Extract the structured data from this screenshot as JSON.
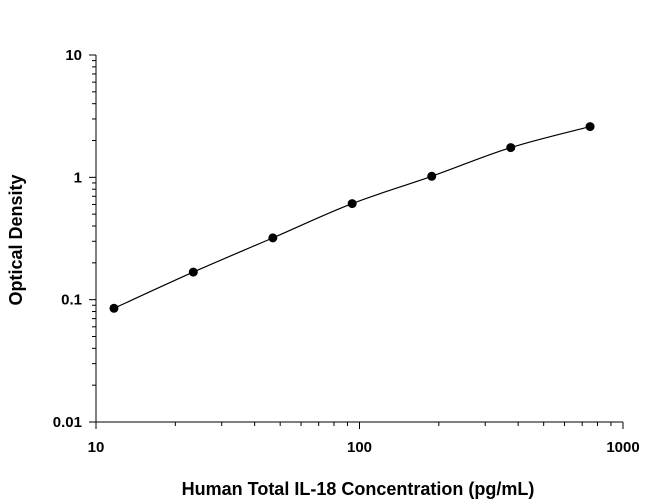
{
  "chart_data": {
    "type": "scatter",
    "title": "",
    "xlabel": "Human Total IL-18 Concentration (pg/mL)",
    "ylabel": "Optical Density",
    "x_scale": "log",
    "y_scale": "log",
    "xlim": [
      10,
      1000
    ],
    "ylim": [
      0.01,
      10
    ],
    "x_ticks": [
      "10",
      "100",
      "1000"
    ],
    "y_ticks": [
      "10",
      "1",
      "0.1",
      "0.01"
    ],
    "grid": false,
    "legend": "none",
    "series": [
      {
        "x": [
          11.7,
          23.4,
          46.9,
          93.8,
          188,
          375,
          750
        ],
        "y": [
          0.085,
          0.168,
          0.32,
          0.61,
          1.02,
          1.75,
          2.6
        ],
        "marker": "circle",
        "fit_line": true,
        "color": "#000000"
      }
    ]
  }
}
